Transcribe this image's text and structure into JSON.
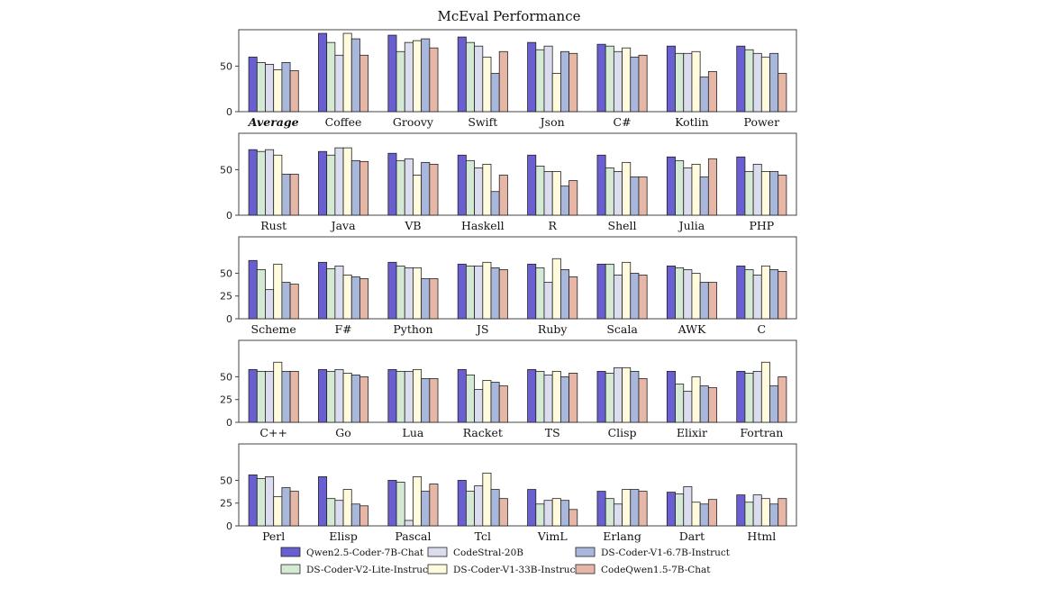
{
  "chart_data": {
    "type": "bar",
    "title": "McEval Performance",
    "ylim": [
      0,
      90
    ],
    "grid": false,
    "legend_position": "bottom",
    "series": [
      {
        "name": "Qwen2.5-Coder-7B-Chat",
        "color": "#6a5fd0"
      },
      {
        "name": "CodeStral-20B",
        "color": "#dcdcef"
      },
      {
        "name": "DS-Coder-V1-6.7B-Instruct",
        "color": "#a9b7dc"
      },
      {
        "name": "DS-Coder-V2-Lite-Instruct",
        "color": "#d4ead5"
      },
      {
        "name": "DS-Coder-V1-33B-Instruct",
        "color": "#fffbdc"
      },
      {
        "name": "CodeQwen1.5-7B-Chat",
        "color": "#e6b7a6"
      }
    ],
    "series_bar_order": [
      0,
      3,
      1,
      4,
      2,
      5
    ],
    "panels": [
      {
        "yticks": [
          0,
          50
        ],
        "groups": [
          {
            "label": "Average",
            "emphasis": true,
            "values": [
              60,
              52,
              54,
              54,
              46,
              45
            ]
          },
          {
            "label": "Coffee",
            "values": [
              86,
              62,
              80,
              76,
              86,
              62
            ]
          },
          {
            "label": "Groovy",
            "values": [
              84,
              76,
              80,
              66,
              78,
              70
            ]
          },
          {
            "label": "Swift",
            "values": [
              82,
              72,
              42,
              76,
              60,
              66
            ]
          },
          {
            "label": "Json",
            "values": [
              76,
              72,
              66,
              68,
              42,
              64
            ]
          },
          {
            "label": "C#",
            "values": [
              74,
              66,
              60,
              72,
              70,
              62
            ]
          },
          {
            "label": "Kotlin",
            "values": [
              72,
              64,
              38,
              64,
              66,
              44
            ]
          },
          {
            "label": "Power",
            "values": [
              72,
              64,
              64,
              68,
              60,
              42
            ]
          }
        ]
      },
      {
        "yticks": [
          0,
          50
        ],
        "groups": [
          {
            "label": "Rust",
            "values": [
              72,
              72,
              45,
              70,
              66,
              45
            ]
          },
          {
            "label": "Java",
            "values": [
              70,
              74,
              60,
              66,
              74,
              59
            ]
          },
          {
            "label": "VB",
            "values": [
              68,
              62,
              58,
              60,
              44,
              56
            ]
          },
          {
            "label": "Haskell",
            "values": [
              66,
              52,
              26,
              60,
              56,
              44
            ]
          },
          {
            "label": "R",
            "values": [
              66,
              48,
              32,
              54,
              48,
              38
            ]
          },
          {
            "label": "Shell",
            "values": [
              66,
              48,
              42,
              52,
              58,
              42
            ]
          },
          {
            "label": "Julia",
            "values": [
              64,
              52,
              42,
              60,
              56,
              62
            ]
          },
          {
            "label": "PHP",
            "values": [
              64,
              56,
              48,
              48,
              48,
              44
            ]
          }
        ]
      },
      {
        "yticks": [
          0,
          25,
          50
        ],
        "groups": [
          {
            "label": "Scheme",
            "values": [
              64,
              32,
              40,
              54,
              60,
              38
            ]
          },
          {
            "label": "F#",
            "values": [
              62,
              58,
              46,
              55,
              48,
              44
            ]
          },
          {
            "label": "Python",
            "values": [
              62,
              56,
              44,
              58,
              56,
              44
            ]
          },
          {
            "label": "JS",
            "values": [
              60,
              58,
              56,
              58,
              62,
              54
            ]
          },
          {
            "label": "Ruby",
            "values": [
              60,
              40,
              54,
              56,
              66,
              46
            ]
          },
          {
            "label": "Scala",
            "values": [
              60,
              48,
              50,
              60,
              62,
              48
            ]
          },
          {
            "label": "AWK",
            "values": [
              58,
              54,
              40,
              56,
              50,
              40
            ]
          },
          {
            "label": "C",
            "values": [
              58,
              48,
              54,
              54,
              58,
              52
            ]
          }
        ]
      },
      {
        "yticks": [
          0,
          25,
          50
        ],
        "groups": [
          {
            "label": "C++",
            "values": [
              58,
              56,
              56,
              56,
              66,
              56
            ]
          },
          {
            "label": "Go",
            "values": [
              58,
              58,
              52,
              56,
              54,
              50
            ]
          },
          {
            "label": "Lua",
            "values": [
              58,
              56,
              48,
              56,
              58,
              48
            ]
          },
          {
            "label": "Racket",
            "values": [
              58,
              36,
              44,
              52,
              46,
              40
            ]
          },
          {
            "label": "TS",
            "values": [
              58,
              52,
              50,
              56,
              56,
              54
            ]
          },
          {
            "label": "Clisp",
            "values": [
              56,
              60,
              56,
              54,
              60,
              48
            ]
          },
          {
            "label": "Elixir",
            "values": [
              56,
              34,
              40,
              42,
              50,
              38
            ]
          },
          {
            "label": "Fortran",
            "values": [
              56,
              56,
              40,
              54,
              66,
              50
            ]
          }
        ]
      },
      {
        "yticks": [
          0,
          25,
          50
        ],
        "groups": [
          {
            "label": "Perl",
            "values": [
              56,
              54,
              42,
              52,
              32,
              38
            ]
          },
          {
            "label": "Elisp",
            "values": [
              54,
              28,
              24,
              30,
              40,
              22
            ]
          },
          {
            "label": "Pascal",
            "values": [
              50,
              6,
              38,
              48,
              54,
              46
            ]
          },
          {
            "label": "Tcl",
            "values": [
              50,
              44,
              40,
              38,
              58,
              30
            ]
          },
          {
            "label": "VimL",
            "values": [
              40,
              28,
              28,
              24,
              30,
              18
            ]
          },
          {
            "label": "Erlang",
            "values": [
              38,
              24,
              40,
              30,
              40,
              38
            ]
          },
          {
            "label": "Dart",
            "values": [
              37,
              43,
              24,
              35,
              26,
              29
            ]
          },
          {
            "label": "Html",
            "values": [
              34,
              34,
              24,
              26,
              30,
              30
            ]
          }
        ]
      }
    ]
  }
}
